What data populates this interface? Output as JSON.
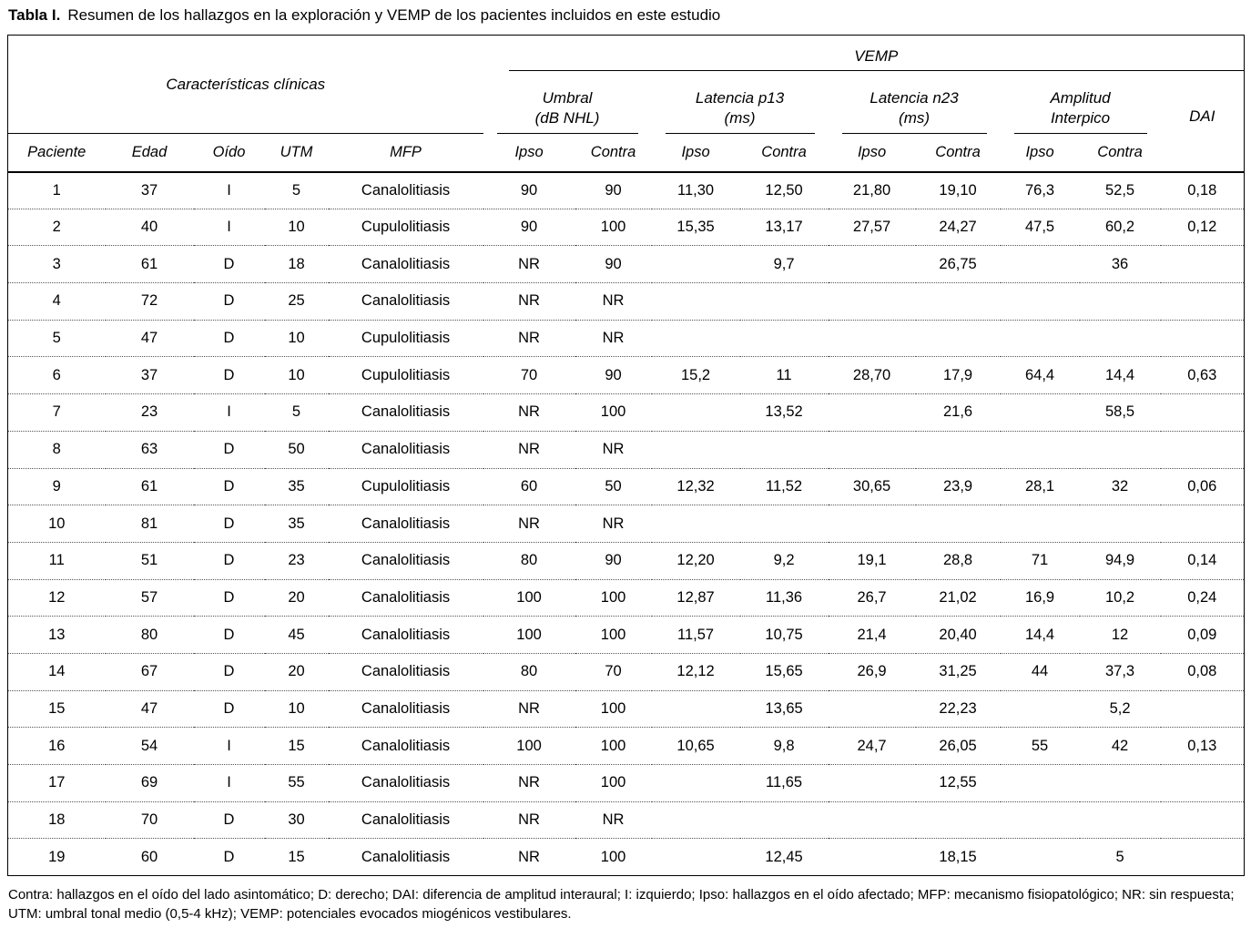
{
  "title": {
    "label": "Tabla I.",
    "text": "Resumen de los hallazgos en la exploración y VEMP de los pacientes incluidos en este estudio"
  },
  "table": {
    "group_header": "VEMP",
    "left_header": "Características clínicas",
    "col_groups": [
      {
        "line1": "Umbral",
        "line2": "(dB NHL)"
      },
      {
        "line1": "Latencia p13",
        "line2": "(ms)"
      },
      {
        "line1": "Latencia n23",
        "line2": "(ms)"
      },
      {
        "line1": "Amplitud",
        "line2": "Interpico"
      }
    ],
    "dai_header": "DAI",
    "subheaders": [
      "Paciente",
      "Edad",
      "Oído",
      "UTM",
      "MFP",
      "Ipso",
      "Contra",
      "Ipso",
      "Contra",
      "Ipso",
      "Contra",
      "Ipso",
      "Contra"
    ],
    "rows": [
      [
        "1",
        "37",
        "I",
        "5",
        "Canalolitiasis",
        "90",
        "90",
        "11,30",
        "12,50",
        "21,80",
        "19,10",
        "76,3",
        "52,5",
        "0,18"
      ],
      [
        "2",
        "40",
        "I",
        "10",
        "Cupulolitiasis",
        "90",
        "100",
        "15,35",
        "13,17",
        "27,57",
        "24,27",
        "47,5",
        "60,2",
        "0,12"
      ],
      [
        "3",
        "61",
        "D",
        "18",
        "Canalolitiasis",
        "NR",
        "90",
        "",
        "9,7",
        "",
        "26,75",
        "",
        "36",
        ""
      ],
      [
        "4",
        "72",
        "D",
        "25",
        "Canalolitiasis",
        "NR",
        "NR",
        "",
        "",
        "",
        "",
        "",
        "",
        ""
      ],
      [
        "5",
        "47",
        "D",
        "10",
        "Cupulolitiasis",
        "NR",
        "NR",
        "",
        "",
        "",
        "",
        "",
        "",
        ""
      ],
      [
        "6",
        "37",
        "D",
        "10",
        "Cupulolitiasis",
        "70",
        "90",
        "15,2",
        "11",
        "28,70",
        "17,9",
        "64,4",
        "14,4",
        "0,63"
      ],
      [
        "7",
        "23",
        "I",
        "5",
        "Canalolitiasis",
        "NR",
        "100",
        "",
        "13,52",
        "",
        "21,6",
        "",
        "58,5",
        ""
      ],
      [
        "8",
        "63",
        "D",
        "50",
        "Canalolitiasis",
        "NR",
        "NR",
        "",
        "",
        "",
        "",
        "",
        "",
        ""
      ],
      [
        "9",
        "61",
        "D",
        "35",
        "Cupulolitiasis",
        "60",
        "50",
        "12,32",
        "11,52",
        "30,65",
        "23,9",
        "28,1",
        "32",
        "0,06"
      ],
      [
        "10",
        "81",
        "D",
        "35",
        "Canalolitiasis",
        "NR",
        "NR",
        "",
        "",
        "",
        "",
        "",
        "",
        ""
      ],
      [
        "11",
        "51",
        "D",
        "23",
        "Canalolitiasis",
        "80",
        "90",
        "12,20",
        "9,2",
        "19,1",
        "28,8",
        "71",
        "94,9",
        "0,14"
      ],
      [
        "12",
        "57",
        "D",
        "20",
        "Canalolitiasis",
        "100",
        "100",
        "12,87",
        "11,36",
        "26,7",
        "21,02",
        "16,9",
        "10,2",
        "0,24"
      ],
      [
        "13",
        "80",
        "D",
        "45",
        "Canalolitiasis",
        "100",
        "100",
        "11,57",
        "10,75",
        "21,4",
        "20,40",
        "14,4",
        "12",
        "0,09"
      ],
      [
        "14",
        "67",
        "D",
        "20",
        "Canalolitiasis",
        "80",
        "70",
        "12,12",
        "15,65",
        "26,9",
        "31,25",
        "44",
        "37,3",
        "0,08"
      ],
      [
        "15",
        "47",
        "D",
        "10",
        "Canalolitiasis",
        "NR",
        "100",
        "",
        "13,65",
        "",
        "22,23",
        "",
        "5,2",
        ""
      ],
      [
        "16",
        "54",
        "I",
        "15",
        "Canalolitiasis",
        "100",
        "100",
        "10,65",
        "9,8",
        "24,7",
        "26,05",
        "55",
        "42",
        "0,13"
      ],
      [
        "17",
        "69",
        "I",
        "55",
        "Canalolitiasis",
        "NR",
        "100",
        "",
        "11,65",
        "",
        "12,55",
        "",
        "",
        ""
      ],
      [
        "18",
        "70",
        "D",
        "30",
        "Canalolitiasis",
        "NR",
        "NR",
        "",
        "",
        "",
        "",
        "",
        "",
        ""
      ],
      [
        "19",
        "60",
        "D",
        "15",
        "Canalolitiasis",
        "NR",
        "100",
        "",
        "12,45",
        "",
        "18,15",
        "",
        "5",
        ""
      ]
    ]
  },
  "footnote": "Contra: hallazgos en el oído del lado asintomático; D: derecho; DAI: diferencia de amplitud interaural; I: izquierdo; Ipso: hallazgos en el oído afectado; MFP: mecanismo fisiopatológico; NR: sin respuesta; UTM: umbral tonal medio (0,5-4 kHz); VEMP: potenciales evocados miogénicos vestibulares."
}
